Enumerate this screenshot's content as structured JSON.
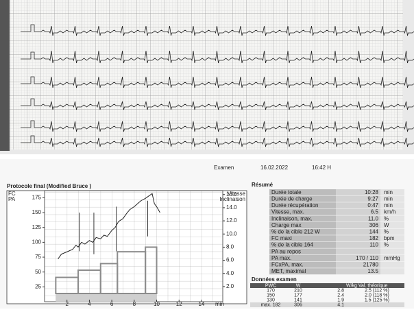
{
  "header": {
    "exam_label": "Examen",
    "date": "16.02.2022",
    "time": "16:42 H"
  },
  "chart": {
    "title": "Protocole final  (Modified Bruce )",
    "y_labels": [
      "FC",
      "PA"
    ],
    "y2_labels": [
      "Vitesse",
      "Inclinaison"
    ],
    "x_unit": "min",
    "xlim": [
      0,
      15.9
    ],
    "xticks": [
      2,
      4,
      6,
      8,
      10,
      12,
      14
    ],
    "ylim": [
      0,
      187
    ],
    "yticks": [
      25,
      50,
      75,
      100,
      125,
      150,
      175
    ],
    "y2lim": [
      -0.3,
      16.6
    ],
    "y2ticks": [
      {
        "value": 2,
        "label": "2.0"
      },
      {
        "value": 4,
        "label": "4.0"
      },
      {
        "value": 6,
        "label": "6.0"
      },
      {
        "value": 8,
        "label": "8.0"
      },
      {
        "value": 10,
        "label": "10.0"
      },
      {
        "value": 12,
        "label": "12.0"
      },
      {
        "value": 14,
        "label": "14.0"
      },
      {
        "value": 16,
        "label": "16.0"
      }
    ],
    "hr": {
      "color": "#222222",
      "x": [
        1.2,
        1.5,
        2,
        2.5,
        2.8,
        3,
        3.3,
        3.6,
        4,
        4.3,
        4.6,
        5,
        5.3,
        5.6,
        6,
        6.3,
        6.6,
        7,
        7.3,
        7.6,
        8,
        8.3,
        8.6,
        9,
        9.3,
        9.6,
        9.8,
        10,
        10.3
      ],
      "values": [
        72,
        80,
        84,
        88,
        95,
        92,
        100,
        97,
        103,
        100,
        108,
        106,
        112,
        110,
        120,
        125,
        135,
        140,
        148,
        155,
        160,
        165,
        170,
        174,
        178,
        182,
        165,
        160,
        150
      ]
    },
    "stages": {
      "color": "#8c8c8c",
      "bins": [
        1,
        3,
        5,
        6.5,
        9,
        10
      ],
      "values": [
        3.4,
        4.5,
        5.5,
        7.3,
        8
      ]
    },
    "bp": {
      "color": "#333333",
      "x": [
        3.1,
        4.4,
        6.4,
        9.2
      ],
      "systolic": [
        150,
        150,
        160,
        170
      ],
      "diastolic": [
        85,
        80,
        85,
        110
      ]
    }
  },
  "resume": {
    "title": "Résumé",
    "rows": [
      [
        "Durée totale",
        "10:28",
        "min"
      ],
      [
        "Durée de charge",
        "9:27",
        "min"
      ],
      [
        "Durée récupération",
        "0:47",
        "min"
      ],
      [
        "Vitesse, max.",
        "6.5",
        "km/h"
      ],
      [
        "Inclinaison, max.",
        "11.0",
        "%"
      ],
      [
        "Charge max",
        "306",
        "W"
      ],
      [
        "% de la cible 212 W",
        "144",
        "%"
      ],
      [
        "FC maxi",
        "182",
        "bpm"
      ],
      [
        "% de la cible 164",
        "110",
        "%"
      ],
      [
        "PA au repos"
      ],
      [
        "PA max.",
        "170 / 110",
        "mmHg"
      ],
      [
        "FCxPA, max.",
        "21780"
      ],
      [
        "MET, maximal",
        "13.5"
      ]
    ]
  },
  "exam_data": {
    "title": "Données examen",
    "header": [
      "PWC",
      "W",
      "W/kg Val. théorique"
    ],
    "rows": [
      [
        "170",
        "210",
        "2.8",
        "2.5 (112 %)"
      ],
      [
        "150",
        "177",
        "2.4",
        "2.0 (118 %)"
      ],
      [
        "130",
        "141",
        "1.9",
        "1.5 (125 %)"
      ],
      [
        "max. 182",
        "306",
        "4.1"
      ]
    ]
  }
}
